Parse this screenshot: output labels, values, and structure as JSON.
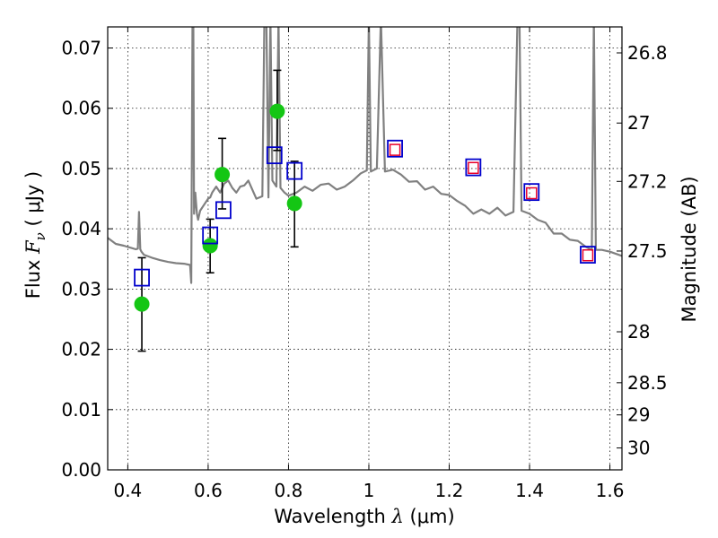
{
  "chart_data": {
    "type": "scatter",
    "title": "",
    "xlabel": "Wavelength  λ (μm)",
    "ylabel": "Flux  F_ν  ( μJy )",
    "ylabel_parts": {
      "pre": "Flux  ",
      "var": "F",
      "sub": "ν",
      "mid": "  (  ",
      "unit": "μJy )"
    },
    "xlabel_parts": {
      "pre": "Wavelength  ",
      "var": "λ",
      "unit": " (μm)"
    },
    "y2label": "Magnitude (AB)",
    "xlim": [
      0.35,
      1.63
    ],
    "ylim": [
      0.0,
      0.0735
    ],
    "grid": true,
    "x_ticks": [
      0.4,
      0.6,
      0.8,
      1.0,
      1.2,
      1.4,
      1.6
    ],
    "x_tick_labels": [
      "0.4",
      "0.6",
      "0.8",
      "1",
      "1.2",
      "1.4",
      "1.6"
    ],
    "y_ticks": [
      0.0,
      0.01,
      0.02,
      0.03,
      0.04,
      0.05,
      0.06,
      0.07
    ],
    "y_tick_labels": [
      "0.00",
      "0.01",
      "0.02",
      "0.03",
      "0.04",
      "0.05",
      "0.06",
      "0.07"
    ],
    "y2_ticks": [
      {
        "mag": 26.8,
        "label": "26.8"
      },
      {
        "mag": 27.0,
        "label": "27"
      },
      {
        "mag": 27.2,
        "label": "27.2"
      },
      {
        "mag": 27.5,
        "label": "27.5"
      },
      {
        "mag": 28.0,
        "label": "28"
      },
      {
        "mag": 28.5,
        "label": "28.5"
      },
      {
        "mag": 29.0,
        "label": "29"
      },
      {
        "mag": 30.0,
        "label": "30"
      }
    ],
    "colors": {
      "spectrum": "#808080",
      "observed": "#14c614",
      "errorbar": "#000000",
      "model_open": "#0000cc",
      "model_inner": "#e8002a"
    },
    "series": [
      {
        "type": "line",
        "x": [
          0.35,
          0.37,
          0.39,
          0.41,
          0.42,
          0.425,
          0.428,
          0.431,
          0.434,
          0.44,
          0.46,
          0.48,
          0.5,
          0.52,
          0.54,
          0.555,
          0.558,
          0.561,
          0.563,
          0.565,
          0.568,
          0.572,
          0.575,
          0.58,
          0.59,
          0.6,
          0.605,
          0.61,
          0.62,
          0.63,
          0.64,
          0.65,
          0.66,
          0.67,
          0.68,
          0.69,
          0.7,
          0.72,
          0.735,
          0.74,
          0.745,
          0.75,
          0.755,
          0.76,
          0.77,
          0.775,
          0.78,
          0.79,
          0.8,
          0.82,
          0.84,
          0.86,
          0.88,
          0.9,
          0.92,
          0.94,
          0.96,
          0.98,
          0.995,
          1.0,
          1.005,
          1.02,
          1.03,
          1.04,
          1.06,
          1.08,
          1.1,
          1.12,
          1.14,
          1.16,
          1.18,
          1.2,
          1.22,
          1.24,
          1.26,
          1.28,
          1.3,
          1.32,
          1.34,
          1.36,
          1.37,
          1.375,
          1.38,
          1.4,
          1.42,
          1.44,
          1.46,
          1.48,
          1.5,
          1.52,
          1.54,
          1.555,
          1.56,
          1.565,
          1.58,
          1.6,
          1.63
        ],
        "y": [
          0.0385,
          0.0375,
          0.0372,
          0.0368,
          0.0366,
          0.0367,
          0.0428,
          0.0366,
          0.0362,
          0.0357,
          0.0352,
          0.0348,
          0.0345,
          0.0343,
          0.0342,
          0.034,
          0.031,
          0.075,
          0.075,
          0.0425,
          0.046,
          0.0425,
          0.0415,
          0.043,
          0.044,
          0.045,
          0.0452,
          0.046,
          0.047,
          0.046,
          0.0475,
          0.048,
          0.0468,
          0.046,
          0.047,
          0.0472,
          0.048,
          0.045,
          0.0454,
          0.075,
          0.075,
          0.0452,
          0.075,
          0.048,
          0.047,
          0.075,
          0.0468,
          0.046,
          0.0455,
          0.046,
          0.047,
          0.0463,
          0.0473,
          0.0475,
          0.0465,
          0.047,
          0.048,
          0.0492,
          0.0497,
          0.075,
          0.0495,
          0.05,
          0.075,
          0.0495,
          0.0498,
          0.049,
          0.0478,
          0.0479,
          0.0465,
          0.047,
          0.0458,
          0.0456,
          0.0446,
          0.0438,
          0.0425,
          0.0432,
          0.0425,
          0.0435,
          0.0422,
          0.0428,
          0.075,
          0.075,
          0.043,
          0.0425,
          0.0415,
          0.041,
          0.0392,
          0.0392,
          0.0382,
          0.038,
          0.037,
          0.0365,
          0.075,
          0.0365,
          0.0365,
          0.0362,
          0.0355
        ]
      },
      {
        "type": "scatter",
        "x": [
          0.435,
          0.605,
          0.635,
          0.772,
          0.815
        ],
        "y": [
          0.0275,
          0.0372,
          0.049,
          0.0595,
          0.0442
        ],
        "yerr_low": [
          0.0197,
          0.0327,
          0.0433,
          0.053,
          0.037
        ],
        "yerr_high": [
          0.0352,
          0.0416,
          0.055,
          0.0663,
          0.0512
        ]
      },
      {
        "type": "scatter",
        "marker": "open-square",
        "x": [
          0.435,
          0.605,
          0.638,
          0.765,
          0.815,
          1.065,
          1.26,
          1.405,
          1.545
        ],
        "y": [
          0.0319,
          0.0389,
          0.0431,
          0.0522,
          0.0496,
          0.0533,
          0.0502,
          0.0461,
          0.0357
        ]
      },
      {
        "type": "scatter",
        "marker": "inner-square",
        "x": [
          1.065,
          1.26,
          1.405,
          1.545
        ],
        "y": [
          0.0531,
          0.0501,
          0.0459,
          0.0356
        ]
      }
    ]
  }
}
